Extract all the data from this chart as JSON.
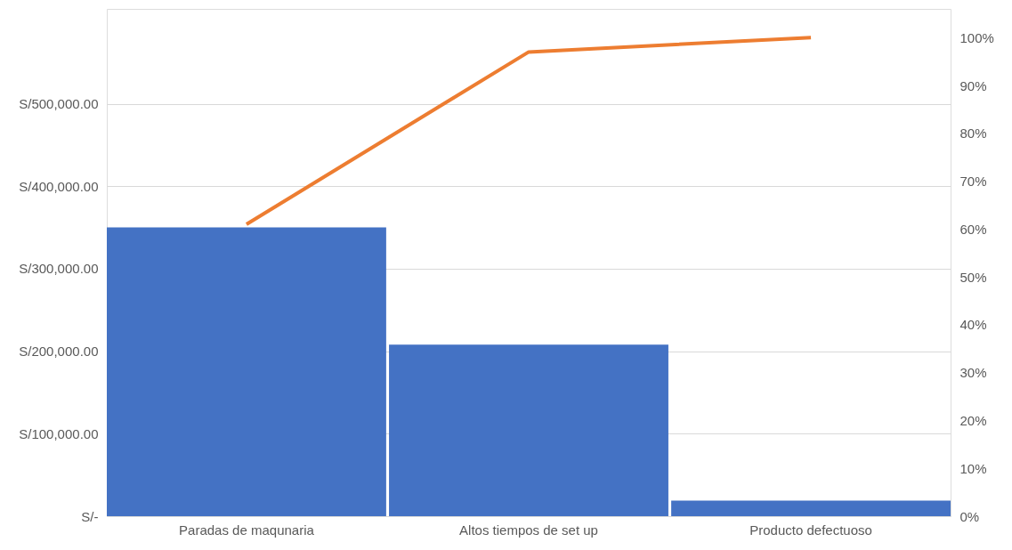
{
  "chart_data": {
    "type": "bar",
    "categories": [
      "Paradas de maqunaria",
      "Altos tiempos de set up",
      "Producto defectuoso"
    ],
    "series": [
      {
        "color": "#4472c4",
        "values": [
          350000,
          208000,
          19000
        ]
      },
      {
        "type": "line",
        "axis": "y2",
        "color": "#ed7d31",
        "values": [
          61,
          97,
          100
        ],
        "marker": "none",
        "line_style": "solid"
      }
    ],
    "ylim": [
      0,
      615000
    ],
    "yticks": [
      {
        "value": 0,
        "label": "S/-"
      },
      {
        "value": 100000,
        "label": "S/100,000.00"
      },
      {
        "value": 200000,
        "label": "S/200,000.00"
      },
      {
        "value": 300000,
        "label": "S/300,000.00"
      },
      {
        "value": 400000,
        "label": "S/400,000.00"
      },
      {
        "value": 500000,
        "label": "S/500,000.00"
      }
    ],
    "y2lim": [
      0,
      106
    ],
    "y2ticks": [
      {
        "value": 0,
        "label": "0%"
      },
      {
        "value": 10,
        "label": "10%"
      },
      {
        "value": 20,
        "label": "20%"
      },
      {
        "value": 30,
        "label": "30%"
      },
      {
        "value": 40,
        "label": "40%"
      },
      {
        "value": 50,
        "label": "50%"
      },
      {
        "value": 60,
        "label": "60%"
      },
      {
        "value": 70,
        "label": "70%"
      },
      {
        "value": 80,
        "label": "80%"
      },
      {
        "value": 90,
        "label": "90%"
      },
      {
        "value": 100,
        "label": "100%"
      }
    ],
    "grid": "y",
    "legend": false
  }
}
